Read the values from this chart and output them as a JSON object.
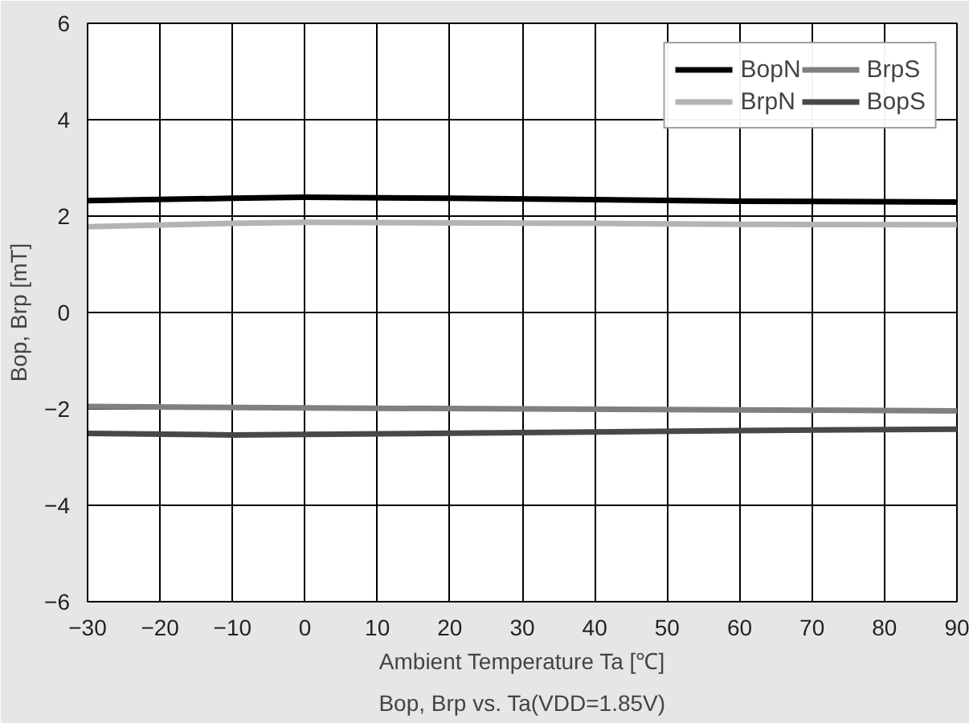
{
  "chart_data": {
    "type": "line",
    "title": "Bop, Brp vs. Ta(VDD=1.85V)",
    "xlabel": "Ambient Temperature Ta [℃]",
    "ylabel": "Bop, Brp [mT]",
    "xlim": [
      -30,
      90
    ],
    "ylim": [
      -6,
      6
    ],
    "xticks": [
      -30,
      -20,
      -10,
      0,
      10,
      20,
      30,
      40,
      50,
      60,
      70,
      80,
      90
    ],
    "yticks": [
      -6,
      -4,
      -2,
      0,
      2,
      4,
      6
    ],
    "grid": true,
    "legend": "top right",
    "line_style": "solid",
    "series": [
      {
        "name": "BopN",
        "color": "#000000",
        "x": [
          -30,
          -10,
          0,
          20,
          40,
          60,
          90
        ],
        "values": [
          2.32,
          2.37,
          2.39,
          2.37,
          2.34,
          2.31,
          2.29
        ]
      },
      {
        "name": "BrpN",
        "color": "#b4b4b4",
        "x": [
          -30,
          -10,
          0,
          20,
          40,
          60,
          90
        ],
        "values": [
          1.78,
          1.85,
          1.87,
          1.86,
          1.85,
          1.83,
          1.82
        ]
      },
      {
        "name": "BrpS",
        "color": "#808080",
        "x": [
          -30,
          0,
          30,
          60,
          90
        ],
        "values": [
          -1.95,
          -1.98,
          -2.0,
          -2.02,
          -2.04
        ]
      },
      {
        "name": "BopS",
        "color": "#484848",
        "x": [
          -30,
          -10,
          0,
          30,
          60,
          90
        ],
        "values": [
          -2.51,
          -2.54,
          -2.53,
          -2.49,
          -2.45,
          -2.42
        ]
      }
    ]
  }
}
